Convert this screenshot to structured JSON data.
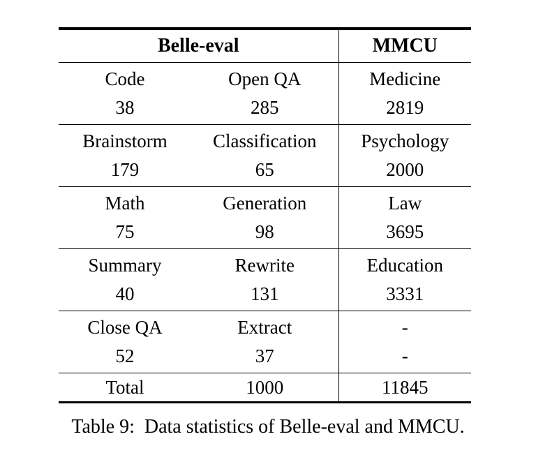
{
  "colors": {
    "background": "#ffffff",
    "text": "#000000",
    "rule": "#000000"
  },
  "table": {
    "header": {
      "belle": "Belle-eval",
      "mmcu": "MMCU"
    },
    "rows": [
      {
        "c1": {
          "label": "Code",
          "value": "38"
        },
        "c2": {
          "label": "Open QA",
          "value": "285"
        },
        "c3": {
          "label": "Medicine",
          "value": "2819"
        }
      },
      {
        "c1": {
          "label": "Brainstorm",
          "value": "179"
        },
        "c2": {
          "label": "Classification",
          "value": "65"
        },
        "c3": {
          "label": "Psychology",
          "value": "2000"
        }
      },
      {
        "c1": {
          "label": "Math",
          "value": "75"
        },
        "c2": {
          "label": "Generation",
          "value": "98"
        },
        "c3": {
          "label": "Law",
          "value": "3695"
        }
      },
      {
        "c1": {
          "label": "Summary",
          "value": "40"
        },
        "c2": {
          "label": "Rewrite",
          "value": "131"
        },
        "c3": {
          "label": "Education",
          "value": "3331"
        }
      },
      {
        "c1": {
          "label": "Close QA",
          "value": "52"
        },
        "c2": {
          "label": "Extract",
          "value": "37"
        },
        "c3": {
          "label": "-",
          "value": "-"
        }
      }
    ],
    "total": {
      "label": "Total",
      "belle_total": "1000",
      "mmcu_total": "11845"
    }
  },
  "caption": "Table 9:  Data statistics of Belle-eval and MMCU."
}
